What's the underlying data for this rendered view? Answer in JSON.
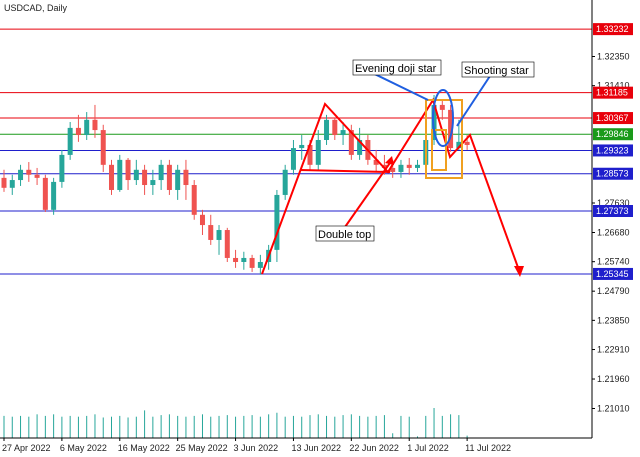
{
  "chart_data": {
    "type": "candlestick",
    "title": "USDCAD, Daily",
    "categories": [
      "27 Apr 2022",
      null,
      null,
      null,
      null,
      null,
      null,
      "6 May 2022",
      null,
      null,
      null,
      null,
      null,
      null,
      "16 May 2022",
      null,
      null,
      null,
      null,
      null,
      null,
      "25 May 2022",
      null,
      null,
      null,
      null,
      null,
      null,
      "3 Jun 2022",
      null,
      null,
      null,
      null,
      null,
      null,
      "13 Jun 2022",
      null,
      null,
      null,
      null,
      null,
      null,
      "22 Jun 2022",
      null,
      null,
      null,
      null,
      null,
      null,
      "1 Jul 2022",
      null,
      null,
      null,
      null,
      null,
      null,
      "11 Jul 2022"
    ],
    "ohlc": [
      [
        1.2844,
        1.287,
        1.2799,
        1.2812
      ],
      [
        1.2812,
        1.2854,
        1.2789,
        1.2837
      ],
      [
        1.2837,
        1.2886,
        1.2818,
        1.287
      ],
      [
        1.287,
        1.2895,
        1.2831,
        1.2854
      ],
      [
        1.2854,
        1.2876,
        1.2821,
        1.2844
      ],
      [
        1.2844,
        1.2854,
        1.2734,
        1.2741
      ],
      [
        1.2741,
        1.2844,
        1.2725,
        1.2831
      ],
      [
        1.2831,
        1.2934,
        1.2812,
        1.2918
      ],
      [
        1.2918,
        1.3024,
        1.2902,
        1.3005
      ],
      [
        1.3005,
        1.3047,
        1.296,
        1.2982
      ],
      [
        1.2982,
        1.3056,
        1.2966,
        1.3031
      ],
      [
        1.3031,
        1.3079,
        1.2973,
        1.2998
      ],
      [
        1.2998,
        1.3015,
        1.2863,
        1.2886
      ],
      [
        1.2886,
        1.2902,
        1.2789,
        1.2805
      ],
      [
        1.2805,
        1.2918,
        1.2799,
        1.2902
      ],
      [
        1.2902,
        1.2908,
        1.2805,
        1.2837
      ],
      [
        1.2837,
        1.2902,
        1.2821,
        1.287
      ],
      [
        1.287,
        1.2886,
        1.2789,
        1.2821
      ],
      [
        1.2821,
        1.287,
        1.2789,
        1.2837
      ],
      [
        1.2837,
        1.2902,
        1.2805,
        1.2886
      ],
      [
        1.2886,
        1.2902,
        1.2789,
        1.2805
      ],
      [
        1.2805,
        1.2886,
        1.2773,
        1.287
      ],
      [
        1.287,
        1.2902,
        1.2773,
        1.2821
      ],
      [
        1.2821,
        1.2837,
        1.2709,
        1.2725
      ],
      [
        1.2725,
        1.2741,
        1.266,
        1.2692
      ],
      [
        1.2692,
        1.2725,
        1.2628,
        1.2644
      ],
      [
        1.2644,
        1.2692,
        1.2596,
        1.2676
      ],
      [
        1.2676,
        1.2683,
        1.2573,
        1.2586
      ],
      [
        1.2586,
        1.2612,
        1.2554,
        1.2573
      ],
      [
        1.2573,
        1.2606,
        1.2548,
        1.2586
      ],
      [
        1.2586,
        1.2596,
        1.2541,
        1.2554
      ],
      [
        1.2554,
        1.2596,
        1.2532,
        1.2573
      ],
      [
        1.2573,
        1.2628,
        1.2548,
        1.2612
      ],
      [
        1.2612,
        1.2805,
        1.2573,
        1.2789
      ],
      [
        1.2789,
        1.2886,
        1.2773,
        1.287
      ],
      [
        1.287,
        1.2966,
        1.2854,
        1.294
      ],
      [
        1.294,
        1.2982,
        1.2902,
        1.295
      ],
      [
        1.295,
        1.2966,
        1.287,
        1.2886
      ],
      [
        1.2886,
        1.2998,
        1.287,
        1.2966
      ],
      [
        1.2966,
        1.3047,
        1.295,
        1.3031
      ],
      [
        1.3031,
        1.3037,
        1.2966,
        1.2982
      ],
      [
        1.2982,
        1.3024,
        1.295,
        1.2998
      ],
      [
        1.2998,
        1.3015,
        1.2902,
        1.2918
      ],
      [
        1.2918,
        1.3005,
        1.2902,
        1.2966
      ],
      [
        1.2966,
        1.2982,
        1.2886,
        1.2902
      ],
      [
        1.2902,
        1.2934,
        1.2863,
        1.2886
      ],
      [
        1.2886,
        1.2918,
        1.2854,
        1.2876
      ],
      [
        1.2876,
        1.2902,
        1.2844,
        1.2863
      ],
      [
        1.2863,
        1.2902,
        1.2844,
        1.2886
      ],
      [
        1.2886,
        1.2908,
        1.2854,
        1.2876
      ],
      [
        1.2876,
        1.2902,
        1.2863,
        1.2886
      ],
      [
        1.2886,
        1.2982,
        1.287,
        1.2966
      ],
      [
        1.2966,
        1.3111,
        1.295,
        1.3079
      ],
      [
        1.3079,
        1.3095,
        1.3031,
        1.3063
      ],
      [
        1.3063,
        1.3079,
        1.2928,
        1.294
      ],
      [
        1.294,
        1.3031,
        1.2934,
        1.296
      ],
      [
        1.296,
        1.2982,
        1.2934,
        1.295
      ]
    ],
    "volume": [
      28,
      27,
      28,
      27,
      30,
      28,
      30,
      27,
      28,
      27,
      28,
      30,
      26,
      27,
      28,
      26,
      27,
      35,
      27,
      29,
      30,
      28,
      27,
      28,
      30,
      27,
      28,
      29,
      27,
      28,
      29,
      27,
      30,
      32,
      27,
      28,
      27,
      29,
      30,
      28,
      27,
      29,
      30,
      28,
      27,
      28,
      29,
      6,
      28,
      27,
      2,
      28,
      38,
      28,
      30,
      29,
      3
    ],
    "up_color": "#26a69a",
    "down_color": "#ef5350",
    "volume_color": "#26a69a",
    "ylim": [
      1.2006,
      1.3417
    ],
    "yticks": [
      {
        "value": 1.3235,
        "label": "1.32350"
      },
      {
        "value": 1.3141,
        "label": "1.31410"
      },
      {
        "value": 1.2763,
        "label": "1.27630"
      },
      {
        "value": 1.2668,
        "label": "1.26680"
      },
      {
        "value": 1.2574,
        "label": "1.25740"
      },
      {
        "value": 1.2479,
        "label": "1.24790"
      },
      {
        "value": 1.2385,
        "label": "1.23850"
      },
      {
        "value": 1.2291,
        "label": "1.22910"
      },
      {
        "value": 1.2196,
        "label": "1.21960"
      },
      {
        "value": 1.2101,
        "label": "1.21010"
      }
    ],
    "levels": [
      {
        "value": 1.33232,
        "color": "#e8000b"
      },
      {
        "value": 1.31185,
        "color": "#e8000b"
      },
      {
        "value": 1.30367,
        "color": "#e8000b"
      },
      {
        "value": 1.29846,
        "color": "#1a9a1a"
      },
      {
        "value": 1.29323,
        "color": "#1f1fcc"
      },
      {
        "value": 1.28573,
        "color": "#1f1fcc"
      },
      {
        "value": 1.27373,
        "color": "#1f1fcc"
      },
      {
        "value": 1.25345,
        "color": "#1f1fcc"
      }
    ],
    "annotations": [
      "Evening doji star",
      "Shooting star",
      "Double top"
    ]
  }
}
